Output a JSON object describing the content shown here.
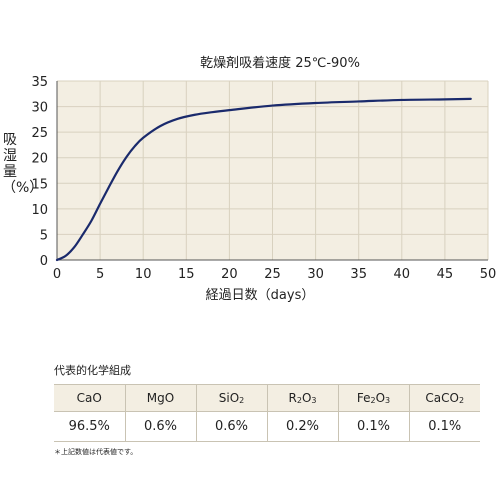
{
  "chart_data": {
    "type": "line",
    "title": "乾燥剤吸着速度 25℃-90%",
    "xlabel": "経過日数（days）",
    "ylabel": "吸湿量（%）",
    "xlim": [
      0,
      50
    ],
    "ylim": [
      0,
      35
    ],
    "xticks": [
      0,
      5,
      10,
      15,
      20,
      25,
      30,
      35,
      40,
      45,
      50
    ],
    "yticks": [
      0,
      5,
      10,
      15,
      20,
      25,
      30,
      35
    ],
    "grid": true,
    "series": [
      {
        "x": [
          0,
          1,
          2,
          3,
          4,
          5,
          6,
          7,
          8,
          9,
          10,
          12,
          14,
          16,
          18,
          20,
          25,
          30,
          35,
          40,
          45,
          48
        ],
        "y": [
          0,
          0.8,
          2.5,
          5,
          7.7,
          11,
          14.2,
          17.3,
          20,
          22.2,
          23.9,
          26.2,
          27.6,
          28.4,
          28.9,
          29.3,
          30.2,
          30.7,
          31.0,
          31.3,
          31.4,
          31.5
        ]
      }
    ],
    "line_color": "#1a2a6c"
  },
  "composition": {
    "title": "代表的化学組成",
    "headers": [
      {
        "main": "CaO",
        "sub": ""
      },
      {
        "main": "MgO",
        "sub": ""
      },
      {
        "main": "SiO",
        "sub": "2"
      },
      {
        "main": "R",
        "sub": "2",
        "tail": "O",
        "sub2": "3"
      },
      {
        "main": "Fe",
        "sub": "2",
        "tail": "O",
        "sub2": "3"
      },
      {
        "main": "CaCO",
        "sub": "2"
      }
    ],
    "values": [
      "96.5%",
      "0.6%",
      "0.6%",
      "0.2%",
      "0.1%",
      "0.1%"
    ],
    "footnote": "＊上記数値は代表値です。"
  }
}
